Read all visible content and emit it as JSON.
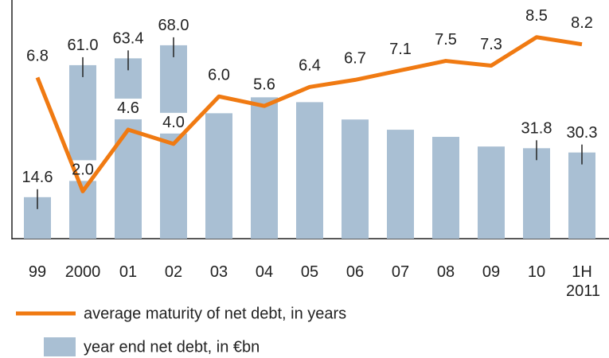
{
  "chart_data": {
    "type": "bar_line",
    "categories": [
      "99",
      "2000",
      "01",
      "02",
      "03",
      "04",
      "05",
      "06",
      "07",
      "08",
      "09",
      "10",
      "1H 2011"
    ],
    "series": [
      {
        "name": "year end net debt, in €bn",
        "type": "bar",
        "color": "#a9bfd3",
        "values": [
          14.6,
          61,
          63.4,
          68,
          44.1,
          49.7,
          48,
          41.9,
          38.3,
          35.8,
          32.4,
          31.8,
          30.3
        ],
        "value_labels": [
          "14.6",
          "61.0",
          "63.4",
          "68.0",
          null,
          null,
          null,
          null,
          null,
          null,
          null,
          "31.8",
          "30.3"
        ]
      },
      {
        "name": "average maturity of net debt, in years",
        "type": "line",
        "color": "#f07a12",
        "axis": "y2",
        "values": [
          6.8,
          2,
          4.6,
          4,
          6,
          5.6,
          6.4,
          6.7,
          7.1,
          7.5,
          7.3,
          8.5,
          8.2
        ],
        "value_labels": [
          "6.8",
          "2.0",
          "4.6",
          "4.0",
          "6.0",
          "5.6",
          "6.4",
          "6.7",
          "7.1",
          "7.5",
          "7.3",
          "8.5",
          "8.2"
        ]
      }
    ],
    "ylim": [
      0,
      80
    ],
    "y2lim": [
      0,
      9.6
    ],
    "legend": "bottom-left"
  }
}
